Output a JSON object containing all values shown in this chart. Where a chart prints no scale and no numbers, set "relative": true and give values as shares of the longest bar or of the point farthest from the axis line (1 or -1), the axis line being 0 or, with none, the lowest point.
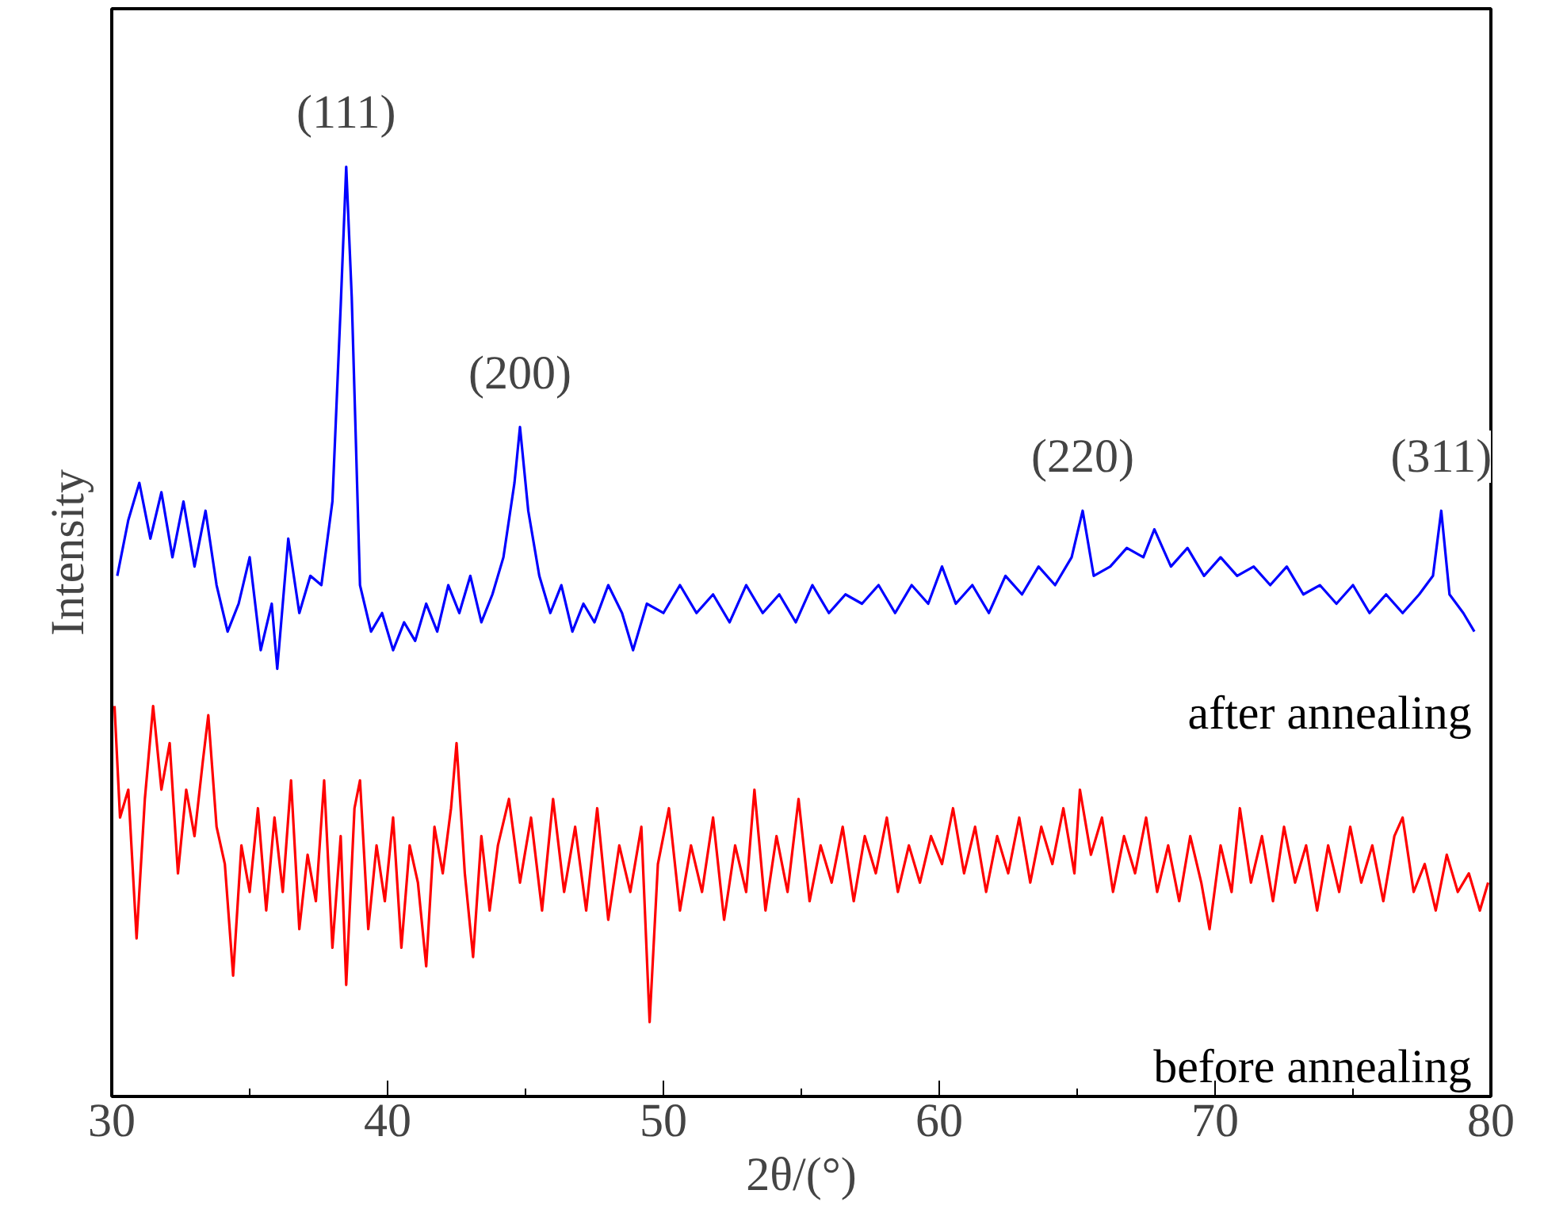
{
  "chart_data": {
    "type": "line",
    "relative": true,
    "xlabel": "2θ/(°)",
    "ylabel": "Intensity",
    "xlim": [
      30,
      80
    ],
    "xticks": [
      30,
      40,
      50,
      60,
      70,
      80
    ],
    "grid": false,
    "legend": false,
    "marker": "none",
    "line_style": "solid",
    "annotations": [
      {
        "text": "(111)",
        "x": 38.5,
        "y": 1.0
      },
      {
        "text": "(200)",
        "x": 44.8,
        "y": 0.72
      },
      {
        "text": "(220)",
        "x": 65.2,
        "y": 0.63
      },
      {
        "text": "(311)",
        "x": 78.2,
        "y": 0.63
      }
    ],
    "series": [
      {
        "name": "after annealing",
        "color": "#0000ff",
        "x": [
          30.2,
          30.6,
          31.0,
          31.4,
          31.8,
          32.2,
          32.6,
          33.0,
          33.4,
          33.8,
          34.2,
          34.6,
          35.0,
          35.4,
          35.8,
          36.0,
          36.4,
          36.8,
          37.2,
          37.6,
          38.0,
          38.3,
          38.5,
          38.7,
          39.0,
          39.4,
          39.8,
          40.2,
          40.6,
          41.0,
          41.4,
          41.8,
          42.2,
          42.6,
          43.0,
          43.4,
          43.8,
          44.2,
          44.6,
          44.8,
          45.1,
          45.5,
          45.9,
          46.3,
          46.7,
          47.1,
          47.5,
          48.0,
          48.5,
          48.9,
          49.4,
          50.0,
          50.6,
          51.2,
          51.8,
          52.4,
          53.0,
          53.6,
          54.2,
          54.8,
          55.4,
          56.0,
          56.6,
          57.2,
          57.8,
          58.4,
          59.0,
          59.6,
          60.1,
          60.6,
          61.2,
          61.8,
          62.4,
          63.0,
          63.6,
          64.2,
          64.8,
          65.2,
          65.6,
          66.2,
          66.8,
          67.4,
          67.8,
          68.4,
          69.0,
          69.6,
          70.2,
          70.8,
          71.4,
          72.0,
          72.6,
          73.2,
          73.8,
          74.4,
          75.0,
          75.6,
          76.2,
          76.8,
          77.4,
          77.9,
          78.2,
          78.5,
          79.0,
          79.4
        ],
        "values": [
          0.56,
          0.62,
          0.66,
          0.6,
          0.65,
          0.58,
          0.64,
          0.57,
          0.63,
          0.55,
          0.5,
          0.53,
          0.58,
          0.48,
          0.53,
          0.46,
          0.6,
          0.52,
          0.56,
          0.55,
          0.64,
          0.85,
          1.0,
          0.86,
          0.55,
          0.5,
          0.52,
          0.48,
          0.51,
          0.49,
          0.53,
          0.5,
          0.55,
          0.52,
          0.56,
          0.51,
          0.54,
          0.58,
          0.66,
          0.72,
          0.63,
          0.56,
          0.52,
          0.55,
          0.5,
          0.53,
          0.51,
          0.55,
          0.52,
          0.48,
          0.53,
          0.52,
          0.55,
          0.52,
          0.54,
          0.51,
          0.55,
          0.52,
          0.54,
          0.51,
          0.55,
          0.52,
          0.54,
          0.53,
          0.55,
          0.52,
          0.55,
          0.53,
          0.57,
          0.53,
          0.55,
          0.52,
          0.56,
          0.54,
          0.57,
          0.55,
          0.58,
          0.63,
          0.56,
          0.57,
          0.59,
          0.58,
          0.61,
          0.57,
          0.59,
          0.56,
          0.58,
          0.56,
          0.57,
          0.55,
          0.57,
          0.54,
          0.55,
          0.53,
          0.55,
          0.52,
          0.54,
          0.52,
          0.54,
          0.56,
          0.63,
          0.54,
          0.52,
          0.5
        ]
      },
      {
        "name": "before annealing",
        "color": "#ff0000",
        "x": [
          30.1,
          30.3,
          30.6,
          30.9,
          31.2,
          31.5,
          31.8,
          32.1,
          32.4,
          32.7,
          33.0,
          33.3,
          33.5,
          33.8,
          34.1,
          34.4,
          34.7,
          35.0,
          35.3,
          35.6,
          35.9,
          36.2,
          36.5,
          36.8,
          37.1,
          37.4,
          37.7,
          38.0,
          38.3,
          38.5,
          38.8,
          39.0,
          39.3,
          39.6,
          39.9,
          40.2,
          40.5,
          40.8,
          41.1,
          41.4,
          41.7,
          42.0,
          42.3,
          42.5,
          42.8,
          43.1,
          43.4,
          43.7,
          44.0,
          44.4,
          44.8,
          45.2,
          45.6,
          46.0,
          46.4,
          46.8,
          47.2,
          47.6,
          48.0,
          48.4,
          48.8,
          49.2,
          49.5,
          49.8,
          50.2,
          50.6,
          51.0,
          51.4,
          51.8,
          52.2,
          52.6,
          53.0,
          53.3,
          53.7,
          54.1,
          54.5,
          54.9,
          55.3,
          55.7,
          56.1,
          56.5,
          56.9,
          57.3,
          57.7,
          58.1,
          58.5,
          58.9,
          59.3,
          59.7,
          60.1,
          60.5,
          60.9,
          61.3,
          61.7,
          62.1,
          62.5,
          62.9,
          63.3,
          63.7,
          64.1,
          64.5,
          64.9,
          65.1,
          65.5,
          65.9,
          66.3,
          66.7,
          67.1,
          67.5,
          67.9,
          68.3,
          68.7,
          69.1,
          69.5,
          69.8,
          70.2,
          70.6,
          70.9,
          71.3,
          71.7,
          72.1,
          72.5,
          72.9,
          73.3,
          73.7,
          74.1,
          74.5,
          74.9,
          75.3,
          75.7,
          76.1,
          76.5,
          76.8,
          77.2,
          77.6,
          78.0,
          78.4,
          78.8,
          79.2,
          79.6,
          79.9
        ],
        "values": [
          0.42,
          0.3,
          0.33,
          0.17,
          0.32,
          0.42,
          0.33,
          0.38,
          0.24,
          0.33,
          0.28,
          0.36,
          0.41,
          0.29,
          0.25,
          0.13,
          0.27,
          0.22,
          0.31,
          0.2,
          0.3,
          0.22,
          0.34,
          0.18,
          0.26,
          0.21,
          0.34,
          0.16,
          0.28,
          0.12,
          0.31,
          0.34,
          0.18,
          0.27,
          0.21,
          0.3,
          0.16,
          0.27,
          0.23,
          0.14,
          0.29,
          0.24,
          0.31,
          0.38,
          0.24,
          0.15,
          0.28,
          0.2,
          0.27,
          0.32,
          0.23,
          0.3,
          0.2,
          0.32,
          0.22,
          0.29,
          0.2,
          0.31,
          0.19,
          0.27,
          0.22,
          0.29,
          0.08,
          0.25,
          0.31,
          0.2,
          0.27,
          0.22,
          0.3,
          0.19,
          0.27,
          0.22,
          0.33,
          0.2,
          0.28,
          0.22,
          0.32,
          0.21,
          0.27,
          0.23,
          0.29,
          0.21,
          0.28,
          0.24,
          0.3,
          0.22,
          0.27,
          0.23,
          0.28,
          0.25,
          0.31,
          0.24,
          0.29,
          0.22,
          0.28,
          0.24,
          0.3,
          0.23,
          0.29,
          0.25,
          0.31,
          0.24,
          0.33,
          0.26,
          0.3,
          0.22,
          0.28,
          0.24,
          0.3,
          0.22,
          0.27,
          0.21,
          0.28,
          0.23,
          0.18,
          0.27,
          0.22,
          0.31,
          0.23,
          0.28,
          0.21,
          0.29,
          0.23,
          0.27,
          0.2,
          0.27,
          0.22,
          0.29,
          0.23,
          0.27,
          0.21,
          0.28,
          0.3,
          0.22,
          0.25,
          0.2,
          0.26,
          0.22,
          0.24,
          0.2,
          0.23
        ]
      }
    ]
  }
}
